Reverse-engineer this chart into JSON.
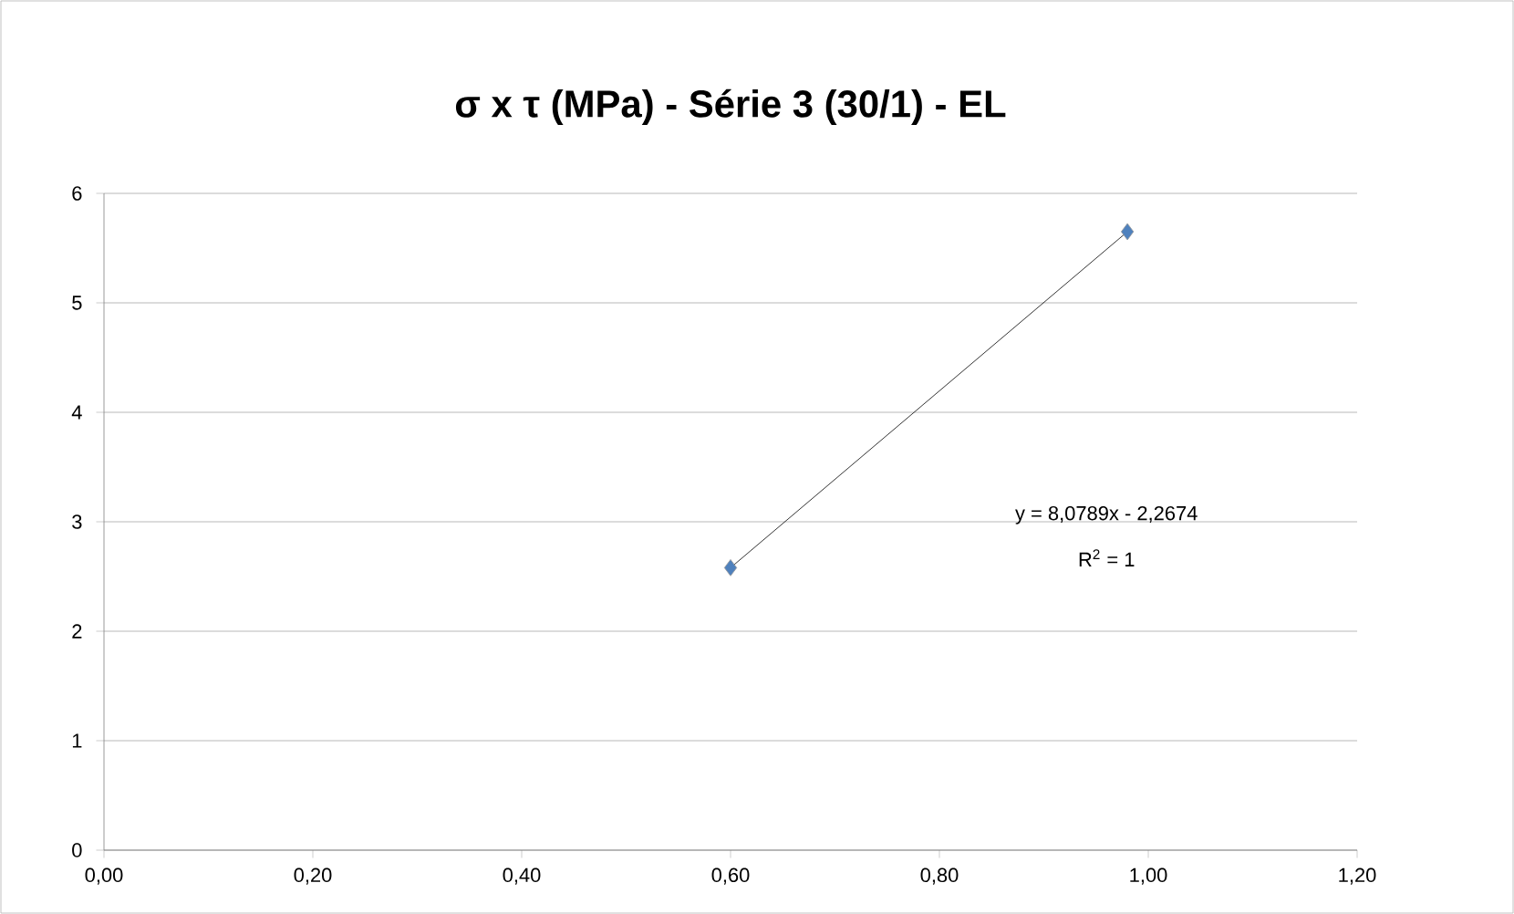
{
  "chart_data": {
    "type": "scatter",
    "title": "σ x τ (MPa) - Série 3 (30/1) - EL",
    "x": [
      0.6,
      0.98
    ],
    "series": [
      {
        "type": "scatter",
        "color": "#4f81bd",
        "marker": "diamond",
        "values": [
          2.58,
          5.65
        ]
      },
      {
        "type": "line",
        "color": "#000000",
        "marker": "none",
        "line_style": "solid",
        "values": [
          2.58,
          5.65
        ]
      }
    ],
    "xlim": [
      0,
      1.2
    ],
    "ylim": [
      0,
      6
    ],
    "xticks": [
      {
        "value": 0,
        "label": "0,00"
      },
      {
        "value": 0.2,
        "label": "0,20"
      },
      {
        "value": 0.4,
        "label": "0,40"
      },
      {
        "value": 0.6,
        "label": "0,60"
      },
      {
        "value": 0.8,
        "label": "0,80"
      },
      {
        "value": 1.0,
        "label": "1,00"
      },
      {
        "value": 1.2,
        "label": "1,20"
      }
    ],
    "yticks": [
      0,
      1,
      2,
      3,
      4,
      5,
      6
    ],
    "grid": "y",
    "annotations": [
      "y = 8,0789x - 2,2674",
      "R$^{2}$ = 1"
    ]
  }
}
